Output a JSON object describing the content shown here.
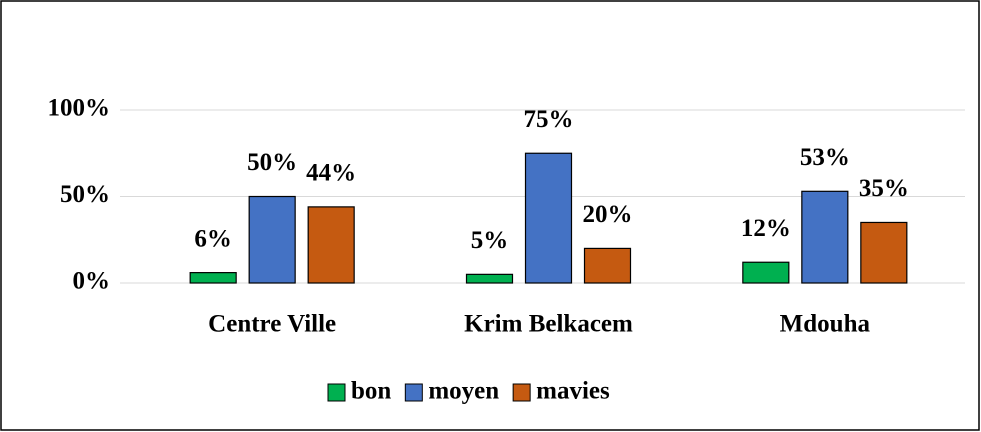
{
  "chart_data": {
    "type": "bar",
    "categories": [
      "Centre Ville",
      "Krim Belkacem",
      "Mdouha"
    ],
    "series": [
      {
        "name": "bon",
        "color": "#00b050",
        "values": [
          6,
          5,
          12
        ],
        "value_labels": [
          "6%",
          "5%",
          "12%"
        ]
      },
      {
        "name": "moyen",
        "color": "#4472c4",
        "values": [
          50,
          75,
          53
        ],
        "value_labels": [
          "50%",
          "75%",
          "53%"
        ]
      },
      {
        "name": "mavies",
        "color": "#c55a11",
        "values": [
          44,
          20,
          35
        ],
        "value_labels": [
          "44%",
          "20%",
          "35%"
        ]
      }
    ],
    "ylim": [
      0,
      100
    ],
    "yticks": [
      {
        "value": 0,
        "label": "0%"
      },
      {
        "value": 50,
        "label": "50%"
      },
      {
        "value": 100,
        "label": "100%"
      }
    ],
    "grid": true,
    "legend": "bottom"
  }
}
